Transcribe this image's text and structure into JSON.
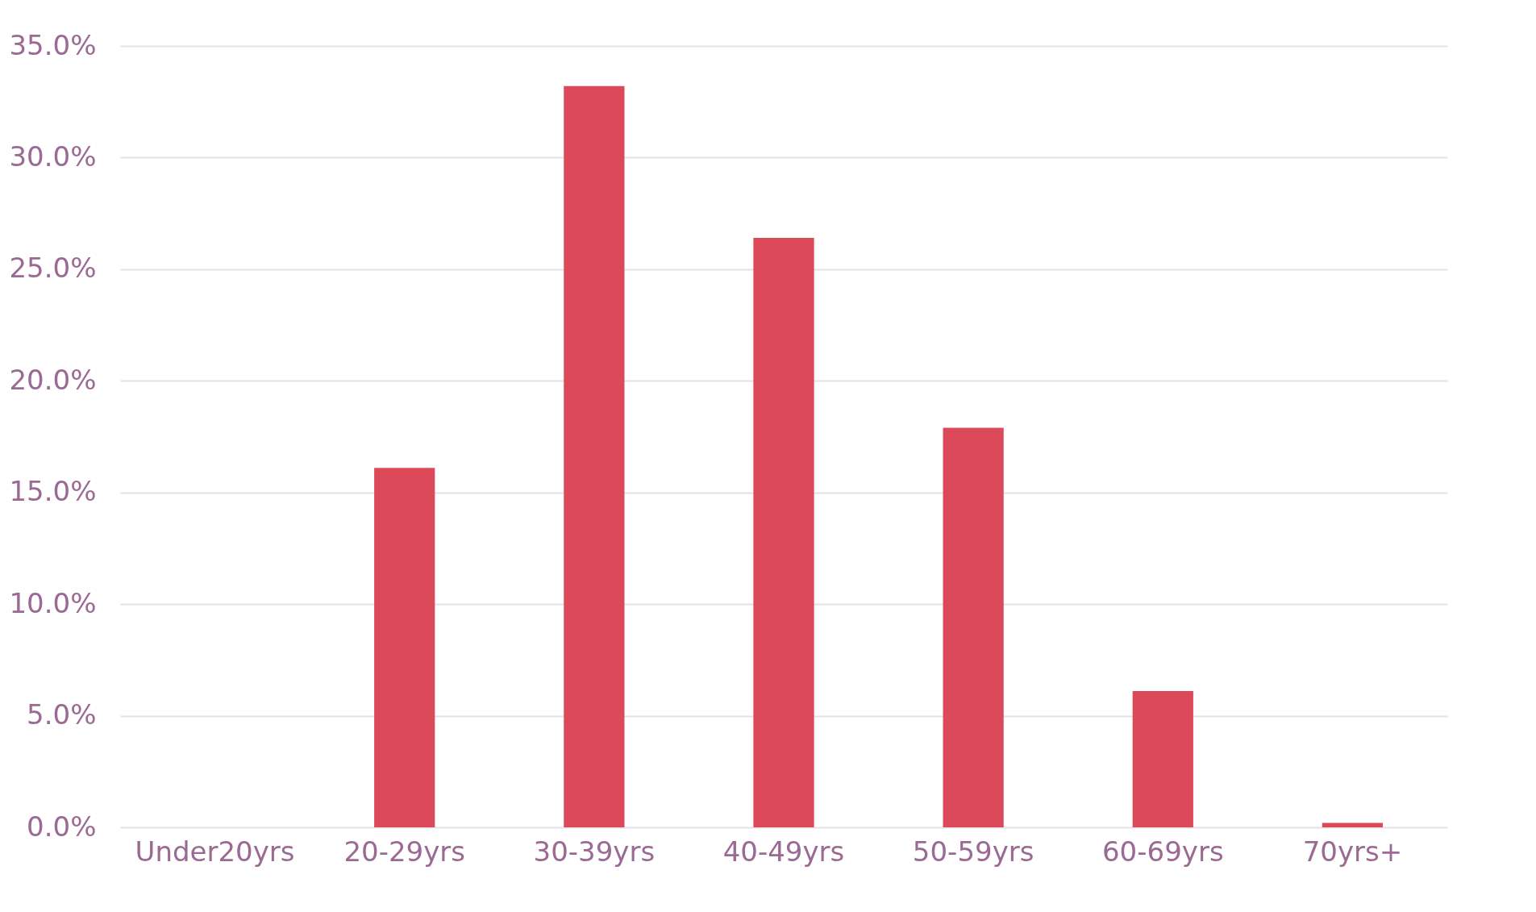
{
  "chart_data": {
    "type": "bar",
    "categories": [
      "Under20yrs",
      "20-29yrs",
      "30-39yrs",
      "40-49yrs",
      "50-59yrs",
      "60-69yrs",
      "70yrs+"
    ],
    "values": [
      0,
      16.1,
      33.2,
      26.4,
      17.9,
      6.1,
      0.2
    ],
    "color": "#dc4a5a",
    "ylim": [
      0,
      35
    ],
    "yticks": [
      {
        "value": 0,
        "label": "0.0%"
      },
      {
        "value": 5,
        "label": "5.0%"
      },
      {
        "value": 10,
        "label": "10.0%"
      },
      {
        "value": 15,
        "label": "15.0%"
      },
      {
        "value": 20,
        "label": "20.0%"
      },
      {
        "value": 25,
        "label": "25.0%"
      },
      {
        "value": 30,
        "label": "30.0%"
      },
      {
        "value": 35,
        "label": "35.0%"
      }
    ],
    "grid": "y"
  }
}
